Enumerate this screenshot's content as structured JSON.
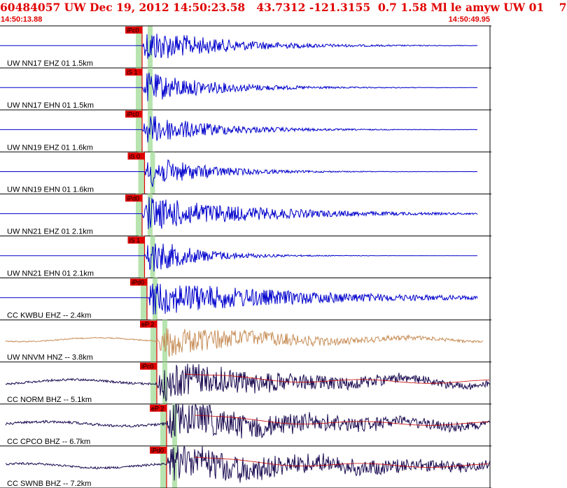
{
  "header": {
    "title": "60484057 UW Dec 19, 2012 14:50:23.58   43.7312 -121.3155  0.7 1.58 Ml le amyw UW 01    7",
    "time_start": "14:50:13.88",
    "time_end": "14:50:49.95"
  },
  "colors": {
    "header_text": "#e00000",
    "trace_blue": "#0000cc",
    "trace_tan": "#c8905a",
    "trace_dark": "#1a0a50",
    "synthetic_red": "#cc0000",
    "pick_red": "#e00000",
    "pick_window_green": "#b8e4b0",
    "panel_border": "#000000"
  },
  "chart_data": {
    "type": "line",
    "title": "60484057 UW Dec 19, 2012 14:50:23.58   43.7312 -121.3155  0.7 1.58 Ml le amyw UW 01    7",
    "x_range": [
      "14:50:13.88",
      "14:50:49.95"
    ],
    "x_unit": "time",
    "traces": [
      {
        "label": "UW NN17 EHZ 01 1.5km",
        "pick": "iPc0",
        "color": "#0000cc",
        "onset": 0.29,
        "amp": 1.0,
        "decay": 0.16,
        "noise": 0.0,
        "synthetic": false
      },
      {
        "label": "UW NN17 EHN 01 1.5km",
        "pick": "iS 1",
        "color": "#0000cc",
        "onset": 0.29,
        "amp": 0.9,
        "decay": 0.14,
        "noise": 0.0,
        "synthetic": false
      },
      {
        "label": "UW NN19 EHZ 01 1.6km",
        "pick": "iPc0",
        "color": "#0000cc",
        "onset": 0.29,
        "amp": 0.9,
        "decay": 0.14,
        "noise": 0.0,
        "synthetic": false
      },
      {
        "label": "UW NN19 EHN 01 1.6km",
        "pick": "iS 0",
        "color": "#0000cc",
        "onset": 0.295,
        "amp": 0.95,
        "decay": 0.12,
        "noise": 0.0,
        "synthetic": false
      },
      {
        "label": "UW NN21 EHZ 01 2.1km",
        "pick": "iPd0",
        "color": "#0000cc",
        "onset": 0.29,
        "amp": 1.0,
        "decay": 0.22,
        "noise": 0.0,
        "synthetic": false
      },
      {
        "label": "UW NN21 EHN 01 2.1km",
        "pick": "iS 1",
        "color": "#0000cc",
        "onset": 0.295,
        "amp": 1.1,
        "decay": 0.1,
        "noise": 0.0,
        "synthetic": false
      },
      {
        "label": "CC KWBU EHZ -- 2.4km",
        "pick": "iPd0",
        "color": "#0000cc",
        "onset": 0.3,
        "amp": 1.0,
        "decay": 0.3,
        "noise": 0.0,
        "synthetic": false
      },
      {
        "label": "UW NNVM HNZ -- 3.8km",
        "pick": "eP 2",
        "color": "#c8905a",
        "onset": 0.32,
        "amp": 0.9,
        "decay": 0.25,
        "noise": 0.15,
        "synthetic": false
      },
      {
        "label": "CC NORM BHZ -- 5.1km",
        "pick": "iPc0",
        "color": "#1a0a50",
        "onset": 0.32,
        "amp": 1.0,
        "decay": 0.35,
        "noise": 0.25,
        "synthetic": true
      },
      {
        "label": "CC CPCO BHZ -- 6.7km",
        "pick": "eP 2",
        "color": "#1a0a50",
        "onset": 0.34,
        "amp": 1.0,
        "decay": 0.4,
        "noise": 0.3,
        "synthetic": true
      },
      {
        "label": "CC SWNB BHZ -- 7.2km",
        "pick": "iPd0",
        "color": "#1a0a50",
        "onset": 0.34,
        "amp": 1.0,
        "decay": 0.45,
        "noise": 0.25,
        "synthetic": true
      }
    ]
  }
}
